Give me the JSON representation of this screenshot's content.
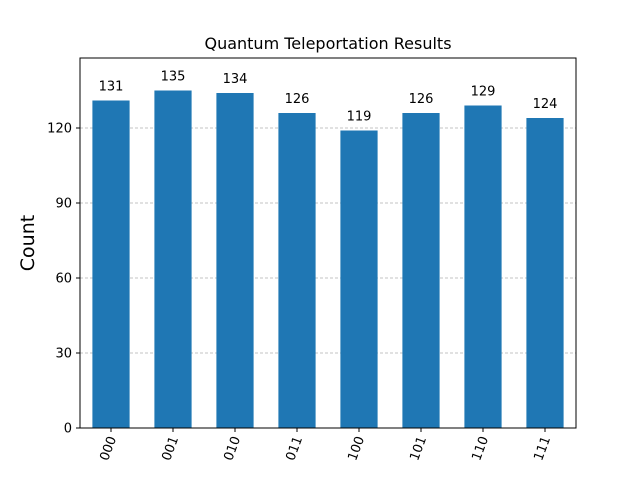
{
  "chart_data": {
    "type": "bar",
    "title": "Quantum Teleportation Results",
    "xlabel": "",
    "ylabel": "Count",
    "categories": [
      "000",
      "001",
      "010",
      "011",
      "100",
      "101",
      "110",
      "111"
    ],
    "values": [
      131,
      135,
      134,
      126,
      119,
      126,
      129,
      124
    ],
    "ylim": [
      0,
      148
    ],
    "yticks": [
      0,
      30,
      60,
      90,
      120
    ],
    "grid": true,
    "bar_color": "#1f77b4",
    "grid_color": "#b0b0b0",
    "xtick_rotation": "70 degrees"
  }
}
